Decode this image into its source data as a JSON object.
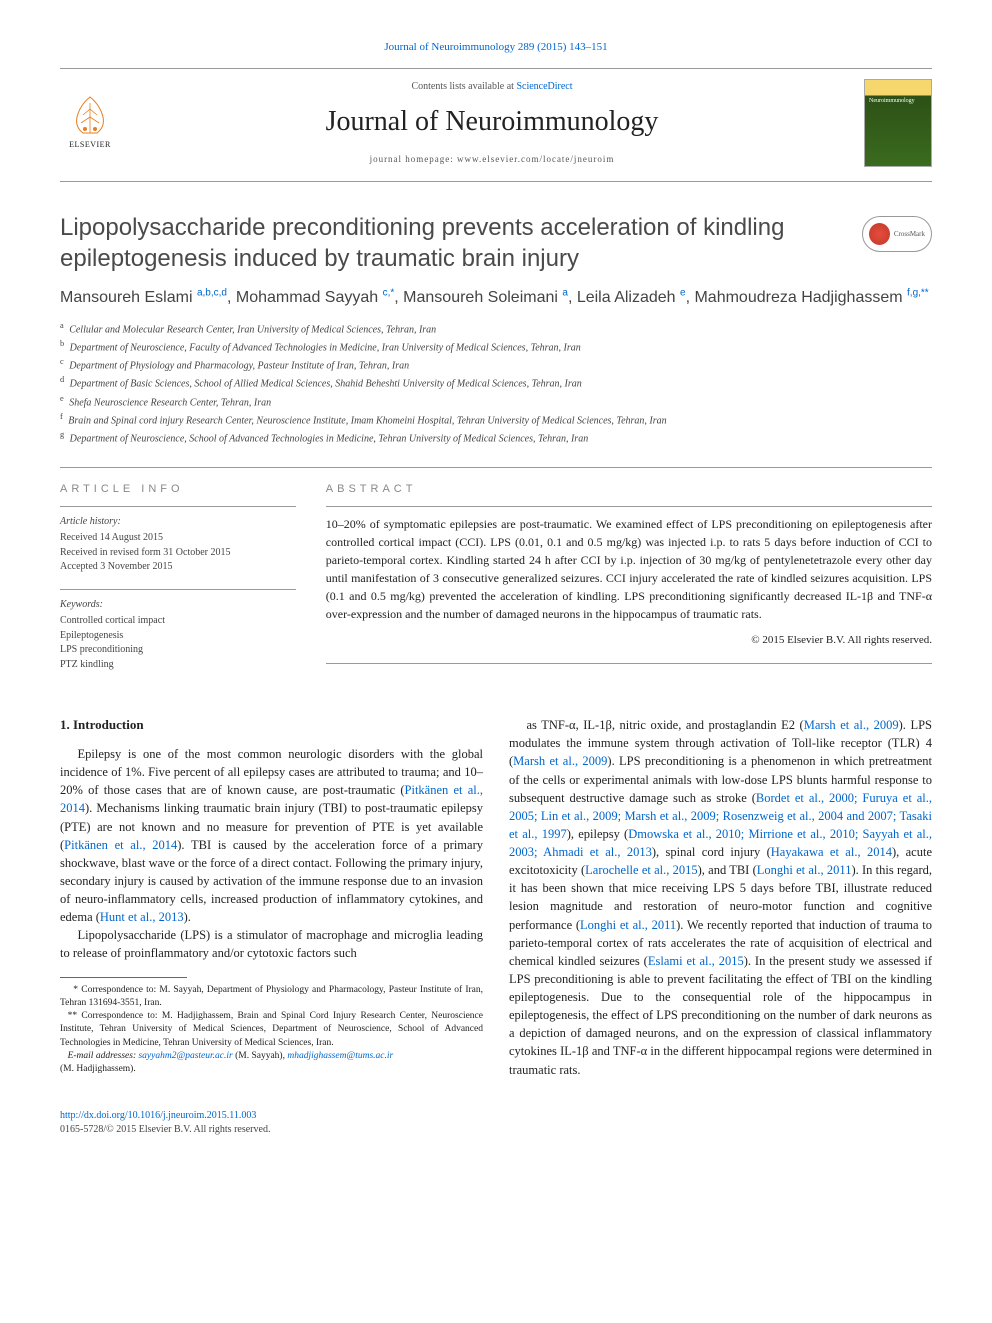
{
  "top_link": "Journal of Neuroimmunology 289 (2015) 143–151",
  "header": {
    "contents_line_prefix": "Contents lists available at ",
    "contents_line_link": "ScienceDirect",
    "journal_title": "Journal of Neuroimmunology",
    "homepage_prefix": "journal homepage: ",
    "homepage_url": "www.elsevier.com/locate/jneuroim",
    "elsevier_label": "ELSEVIER",
    "cover_label": "Neuroimmunology"
  },
  "article_title": "Lipopolysaccharide preconditioning prevents acceleration of kindling epileptogenesis induced by traumatic brain injury",
  "crossmark_label": "CrossMark",
  "authors_html": "Mansoureh Eslami <sup>a,b,c,d</sup>, Mohammad Sayyah <sup>c,*</sup>, Mansoureh Soleimani <sup>a</sup>, Leila Alizadeh <sup>e</sup>, Mahmoudreza Hadjighassem <sup>f,g,**</sup>",
  "affiliations": [
    {
      "sup": "a",
      "text": "Cellular and Molecular Research Center, Iran University of Medical Sciences, Tehran, Iran"
    },
    {
      "sup": "b",
      "text": "Department of Neuroscience, Faculty of Advanced Technologies in Medicine, Iran University of Medical Sciences, Tehran, Iran"
    },
    {
      "sup": "c",
      "text": "Department of Physiology and Pharmacology, Pasteur Institute of Iran, Tehran, Iran"
    },
    {
      "sup": "d",
      "text": "Department of Basic Sciences, School of Allied Medical Sciences, Shahid Beheshti University of Medical Sciences, Tehran, Iran"
    },
    {
      "sup": "e",
      "text": "Shefa Neuroscience Research Center, Tehran, Iran"
    },
    {
      "sup": "f",
      "text": "Brain and Spinal cord injury Research Center, Neuroscience Institute, Imam Khomeini Hospital, Tehran University of Medical Sciences, Tehran, Iran"
    },
    {
      "sup": "g",
      "text": "Department of Neuroscience, School of Advanced Technologies in Medicine, Tehran University of Medical Sciences, Tehran, Iran"
    }
  ],
  "info_label": "ARTICLE INFO",
  "abstract_label": "ABSTRACT",
  "history": {
    "heading": "Article history:",
    "lines": [
      "Received 14 August 2015",
      "Received in revised form 31 October 2015",
      "Accepted 3 November 2015"
    ]
  },
  "keywords": {
    "heading": "Keywords:",
    "items": [
      "Controlled cortical impact",
      "Epileptogenesis",
      "LPS preconditioning",
      "PTZ kindling"
    ]
  },
  "abstract_text": "10–20% of symptomatic epilepsies are post-traumatic. We examined effect of LPS preconditioning on epileptogenesis after controlled cortical impact (CCI). LPS (0.01, 0.1 and 0.5 mg/kg) was injected i.p. to rats 5 days before induction of CCI to parieto-temporal cortex. Kindling started 24 h after CCI by i.p. injection of 30 mg/kg of pentylenetetrazole every other day until manifestation of 3 consecutive generalized seizures. CCI injury accelerated the rate of kindled seizures acquisition. LPS (0.1 and 0.5 mg/kg) prevented the acceleration of kindling. LPS preconditioning significantly decreased IL-1β and TNF-α over-expression and the number of damaged neurons in the hippocampus of traumatic rats.",
  "copyright_line": "© 2015 Elsevier B.V. All rights reserved.",
  "intro_heading": "1. Introduction",
  "body_paragraphs": [
    "Epilepsy is one of the most common neurologic disorders with the global incidence of 1%. Five percent of all epilepsy cases are attributed to trauma; and 10–20% of those cases that are of known cause, are post-traumatic (<a>Pitkänen et al., 2014</a>). Mechanisms linking traumatic brain injury (TBI) to post-traumatic epilepsy (PTE) are not known and no measure for prevention of PTE is yet available (<a>Pitkänen et al., 2014</a>). TBI is caused by the acceleration force of a primary shockwave, blast wave or the force of a direct contact. Following the primary injury, secondary injury is caused by activation of the immune response due to an invasion of neuro-inflammatory cells, increased production of inflammatory cytokines, and edema (<a>Hunt et al., 2013</a>).",
    "Lipopolysaccharide (LPS) is a stimulator of macrophage and microglia leading to release of proinflammatory and/or cytotoxic factors such",
    "as TNF-α, IL-1β, nitric oxide, and prostaglandin E2 (<a>Marsh et al., 2009</a>). LPS modulates the immune system through activation of Toll-like receptor (TLR) 4 (<a>Marsh et al., 2009</a>). LPS preconditioning is a phenomenon in which pretreatment of the cells or experimental animals with low-dose LPS blunts harmful response to subsequent destructive damage such as stroke (<a>Bordet et al., 2000; Furuya et al., 2005; Lin et al., 2009; Marsh et al., 2009; Rosenzweig et al., 2004 and 2007; Tasaki et al., 1997</a>), epilepsy (<a>Dmowska et al., 2010; Mirrione et al., 2010; Sayyah et al., 2003; Ahmadi et al., 2013</a>), spinal cord injury (<a>Hayakawa et al., 2014</a>), acute excitotoxicity (<a>Larochelle et al., 2015</a>), and TBI (<a>Longhi et al., 2011</a>). In this regard, it has been shown that mice receiving LPS 5 days before TBI, illustrate reduced lesion magnitude and restoration of neuro-motor function and cognitive performance (<a>Longhi et al., 2011</a>). We recently reported that induction of trauma to parieto-temporal cortex of rats accelerates the rate of acquisition of electrical and chemical kindled seizures (<a>Eslami et al., 2015</a>). In the present study we assessed if LPS preconditioning is able to prevent facilitating the effect of TBI on the kindling epileptogenesis. Due to the consequential role of the hippocampus in epileptogenesis, the effect of LPS preconditioning on the number of dark neurons as a depiction of damaged neurons, and on the expression of classical inflammatory cytokines IL-1β and TNF-α in the different hippocampal regions were determined in traumatic rats."
  ],
  "footnotes": {
    "corr1_prefix": "* Correspondence to: M. Sayyah, Department of Physiology and Pharmacology, Pasteur Institute of Iran, Tehran 131694-3551, Iran.",
    "corr2_prefix": "** Correspondence to: M. Hadjighassem, Brain and Spinal Cord Injury Research Center, Neuroscience Institute, Tehran University of Medical Sciences, Department of Neuroscience, School of Advanced Technologies in Medicine, Tehran University of Medical Sciences, Iran.",
    "email_label": "E-mail addresses:",
    "email1": "sayyahm2@pasteur.ac.ir",
    "email1_owner": "(M. Sayyah),",
    "email2": "mhadjighassem@tums.ac.ir",
    "email2_owner": "(M. Hadjighassem)."
  },
  "bottom": {
    "doi": "http://dx.doi.org/10.1016/j.jneuroim.2015.11.003",
    "issn_line": "0165-5728/© 2015 Elsevier B.V. All rights reserved."
  },
  "colors": {
    "link": "#0066cc",
    "text": "#222222",
    "muted": "#888888",
    "rule": "#999999"
  }
}
